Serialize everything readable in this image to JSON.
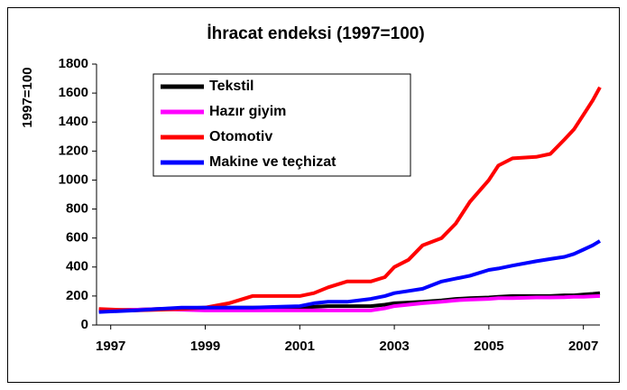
{
  "chart_data": {
    "type": "line",
    "title": "İhracat endeksi (1997=100)",
    "y_label": "1997=100",
    "x": [
      1996.75,
      1997.5,
      1998,
      1998.5,
      1999,
      1999.5,
      2000,
      2000.5,
      2001,
      2001.3,
      2001.6,
      2002,
      2002.5,
      2002.8,
      2003,
      2003.3,
      2003.6,
      2004,
      2004.3,
      2004.6,
      2005,
      2005.2,
      2005.5,
      2006,
      2006.3,
      2006.6,
      2006.8,
      2007,
      2007.2,
      2007.35
    ],
    "series": [
      {
        "name": "Tekstil",
        "color": "#000000",
        "values": [
          100,
          105,
          110,
          115,
          120,
          120,
          120,
          120,
          120,
          125,
          130,
          130,
          130,
          140,
          150,
          155,
          160,
          170,
          180,
          185,
          190,
          195,
          200,
          200,
          200,
          205,
          205,
          210,
          215,
          220
        ]
      },
      {
        "name": "Hazır giyim",
        "color": "#ff00ff",
        "values": [
          100,
          105,
          110,
          105,
          100,
          100,
          100,
          100,
          100,
          100,
          100,
          100,
          100,
          115,
          130,
          140,
          150,
          160,
          170,
          175,
          180,
          185,
          185,
          190,
          190,
          192,
          195,
          195,
          198,
          200
        ]
      },
      {
        "name": "Otomotiv",
        "color": "#ff0000",
        "values": [
          110,
          100,
          105,
          110,
          120,
          150,
          200,
          200,
          200,
          220,
          260,
          300,
          300,
          330,
          400,
          450,
          550,
          600,
          700,
          850,
          1000,
          1100,
          1150,
          1160,
          1180,
          1280,
          1350,
          1450,
          1550,
          1640
        ]
      },
      {
        "name": "Makine ve teçhizat",
        "color": "#0000ff",
        "values": [
          90,
          100,
          110,
          120,
          120,
          120,
          120,
          125,
          130,
          150,
          160,
          160,
          180,
          200,
          220,
          235,
          250,
          300,
          320,
          340,
          380,
          390,
          410,
          440,
          455,
          470,
          490,
          520,
          550,
          580
        ]
      }
    ],
    "xlim": [
      1996.7,
      2007.35
    ],
    "xticks": [
      1997,
      1999,
      2001,
      2003,
      2005,
      2007
    ],
    "ylim": [
      0,
      1800
    ],
    "yticks": [
      0,
      200,
      400,
      600,
      800,
      1000,
      1200,
      1400,
      1600,
      1800
    ],
    "legend": "top-left"
  }
}
